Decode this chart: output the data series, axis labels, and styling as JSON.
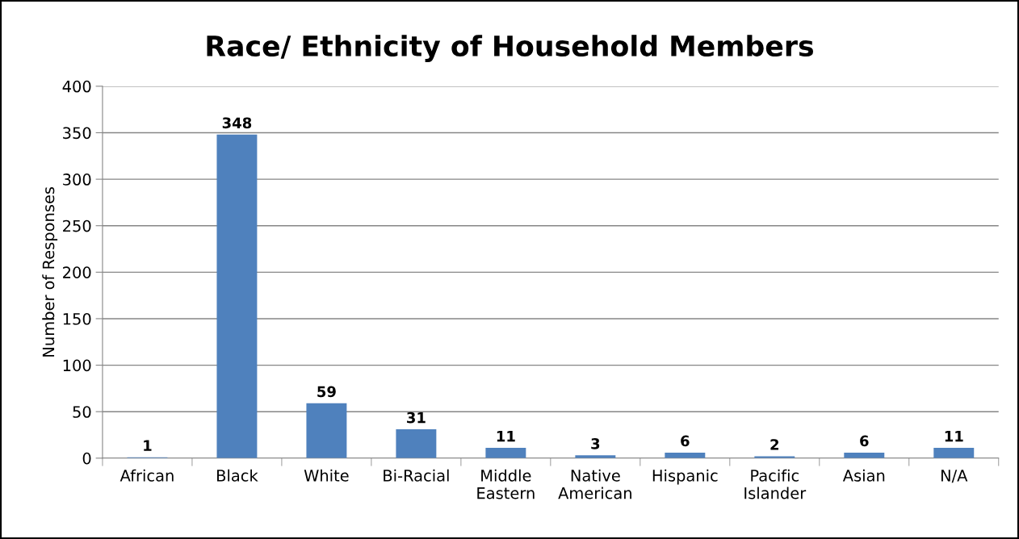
{
  "chart_data": {
    "type": "bar",
    "title": "Race/ Ethnicity of Household Members",
    "ylabel": "Number of Responses",
    "categories": [
      "African",
      "Black",
      "White",
      "Bi-Racial",
      "Middle Eastern",
      "Native American",
      "Hispanic",
      "Pacific Islander",
      "Asian",
      "N/A"
    ],
    "values": [
      1,
      348,
      59,
      31,
      11,
      3,
      6,
      2,
      6,
      11
    ],
    "color": "#4f81bd",
    "ylim": [
      0,
      400
    ],
    "yticks": [
      0,
      50,
      100,
      150,
      200,
      250,
      300,
      350,
      400
    ],
    "grid": "y",
    "data_labels": true
  }
}
